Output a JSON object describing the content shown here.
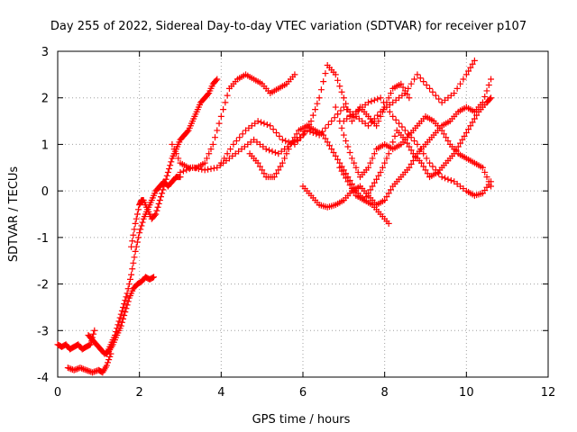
{
  "chart_data": {
    "type": "scatter",
    "title": "Day 255 of 2022, Sidereal Day-to-day VTEC variation (SDTVAR) for receiver p107",
    "xlabel": "GPS time / hours",
    "ylabel": "SDTVAR / TECUs",
    "xlim": [
      0,
      12
    ],
    "ylim": [
      -4,
      3
    ],
    "xticks": [
      "0",
      "2",
      "4",
      "6",
      "8",
      "10",
      "12"
    ],
    "yticks": [
      "-4",
      "-3",
      "-2",
      "-1",
      "0",
      "1",
      "2",
      "3"
    ],
    "grid": true,
    "marker": "plus",
    "color": "#ff0000",
    "series": [
      {
        "x": [
          0.0,
          0.1,
          0.2,
          0.3,
          0.4,
          0.5,
          0.6,
          0.7,
          0.8,
          0.9
        ],
        "y": [
          -3.3,
          -3.35,
          -3.3,
          -3.4,
          -3.35,
          -3.3,
          -3.4,
          -3.35,
          -3.3,
          -3.0
        ]
      },
      {
        "x": [
          0.25,
          0.4,
          0.55,
          0.7,
          0.85,
          1.0,
          1.1,
          1.2,
          1.3
        ],
        "y": [
          -3.8,
          -3.85,
          -3.8,
          -3.85,
          -3.9,
          -3.85,
          -3.9,
          -3.75,
          -3.5
        ]
      },
      {
        "x": [
          0.75,
          0.85,
          0.95,
          1.05,
          1.15,
          1.25,
          1.35,
          1.45,
          1.55,
          1.65,
          1.75,
          1.85,
          1.95,
          2.05,
          2.15,
          2.25,
          2.35
        ],
        "y": [
          -3.1,
          -3.2,
          -3.3,
          -3.4,
          -3.5,
          -3.45,
          -3.3,
          -3.1,
          -2.9,
          -2.6,
          -2.3,
          -2.1,
          -2.0,
          -1.95,
          -1.85,
          -1.9,
          -1.85
        ]
      },
      {
        "x": [
          1.2,
          1.3,
          1.4,
          1.5,
          1.6,
          1.7,
          1.8,
          1.9,
          2.0,
          2.1,
          2.2,
          2.3,
          2.4,
          2.5,
          2.6,
          2.7,
          2.8,
          2.9,
          3.0
        ],
        "y": [
          -3.5,
          -3.3,
          -3.1,
          -2.8,
          -2.5,
          -2.2,
          -1.8,
          -1.3,
          -0.9,
          -0.6,
          -0.4,
          -0.2,
          0.0,
          0.1,
          0.2,
          0.1,
          0.2,
          0.3,
          0.3
        ]
      },
      {
        "x": [
          1.8,
          1.9,
          2.0,
          2.05,
          2.1,
          2.2,
          2.3,
          2.4,
          2.5,
          2.6,
          2.7,
          2.8,
          2.9,
          3.0,
          3.1,
          3.2,
          3.3,
          3.4,
          3.5,
          3.6,
          3.7,
          3.8,
          3.9
        ],
        "y": [
          -1.2,
          -0.7,
          -0.3,
          -0.2,
          -0.2,
          -0.4,
          -0.6,
          -0.5,
          -0.2,
          0.1,
          0.4,
          0.7,
          0.9,
          1.1,
          1.2,
          1.3,
          1.5,
          1.7,
          1.9,
          2.0,
          2.1,
          2.3,
          2.4
        ]
      },
      {
        "x": [
          2.8,
          3.0,
          3.2,
          3.4,
          3.6,
          3.8,
          4.0,
          4.2,
          4.4,
          4.6,
          4.8,
          5.0,
          5.2,
          5.4,
          5.6,
          5.8
        ],
        "y": [
          1.0,
          0.6,
          0.5,
          0.5,
          0.6,
          1.0,
          1.6,
          2.2,
          2.4,
          2.5,
          2.4,
          2.3,
          2.1,
          2.2,
          2.3,
          2.5
        ]
      },
      {
        "x": [
          3.0,
          3.3,
          3.6,
          3.9,
          4.2,
          4.5,
          4.8,
          5.1,
          5.4,
          5.7,
          6.0,
          6.2,
          6.4,
          6.6,
          6.8,
          7.0,
          7.2,
          7.4,
          7.6,
          7.8,
          8.0,
          8.2,
          8.4,
          8.6
        ],
        "y": [
          0.4,
          0.5,
          0.45,
          0.5,
          0.7,
          0.9,
          1.1,
          0.9,
          0.8,
          1.0,
          1.2,
          1.5,
          2.0,
          2.7,
          2.5,
          2.0,
          1.5,
          1.8,
          1.6,
          1.4,
          1.8,
          2.2,
          2.3,
          2.0
        ]
      },
      {
        "x": [
          4.0,
          4.3,
          4.6,
          4.9,
          5.2,
          5.5,
          5.8,
          6.1,
          6.4,
          6.7,
          7.0,
          7.3,
          7.6,
          7.9,
          8.2,
          8.5,
          8.8,
          9.1,
          9.4,
          9.7,
          10.0,
          10.2
        ],
        "y": [
          0.6,
          1.0,
          1.3,
          1.5,
          1.4,
          1.1,
          1.0,
          1.3,
          1.2,
          1.5,
          1.8,
          1.6,
          1.4,
          1.7,
          1.9,
          2.1,
          2.5,
          2.2,
          1.9,
          2.1,
          2.5,
          2.8
        ]
      },
      {
        "x": [
          4.7,
          4.9,
          5.1,
          5.3,
          5.5,
          5.7,
          5.9,
          6.1,
          6.3,
          6.5,
          6.7,
          6.9,
          7.1,
          7.3,
          7.5,
          7.7,
          7.9,
          8.1
        ],
        "y": [
          0.8,
          0.6,
          0.3,
          0.3,
          0.6,
          1.0,
          1.3,
          1.4,
          1.3,
          1.2,
          0.9,
          0.6,
          0.3,
          0.0,
          -0.2,
          -0.3,
          -0.5,
          -0.7
        ]
      },
      {
        "x": [
          6.0,
          6.2,
          6.4,
          6.6,
          6.8,
          7.0,
          7.2,
          7.4,
          7.6,
          7.8,
          8.0,
          8.2,
          8.4,
          8.6,
          8.8,
          9.0,
          9.2,
          9.4,
          9.6,
          9.8,
          10.0,
          10.2,
          10.4,
          10.6
        ],
        "y": [
          0.1,
          -0.1,
          -0.3,
          -0.35,
          -0.3,
          -0.2,
          0.0,
          0.1,
          -0.1,
          -0.3,
          -0.2,
          0.1,
          0.3,
          0.5,
          0.8,
          1.0,
          1.2,
          1.4,
          1.5,
          1.7,
          1.8,
          1.7,
          1.9,
          2.4
        ]
      },
      {
        "x": [
          6.8,
          7.0,
          7.2,
          7.4,
          7.6,
          7.8,
          8.0,
          8.2,
          8.4,
          8.6,
          8.8,
          9.0,
          9.2,
          9.4,
          9.6,
          9.8,
          10.0,
          10.2,
          10.4,
          10.6
        ],
        "y": [
          1.8,
          1.2,
          0.7,
          0.3,
          0.5,
          0.9,
          1.0,
          0.9,
          1.0,
          1.2,
          1.4,
          1.6,
          1.5,
          1.3,
          1.0,
          0.8,
          0.7,
          0.6,
          0.5,
          0.1
        ]
      },
      {
        "x": [
          6.9,
          7.1,
          7.3,
          7.5,
          7.7,
          7.9,
          8.1,
          8.3,
          8.5,
          8.7,
          8.9,
          9.1,
          9.3,
          9.5,
          9.7,
          9.9,
          10.1,
          10.3,
          10.5,
          10.6
        ],
        "y": [
          0.5,
          0.2,
          -0.1,
          -0.2,
          0.1,
          0.4,
          0.8,
          1.3,
          1.1,
          0.8,
          0.6,
          0.3,
          0.4,
          0.6,
          0.8,
          1.1,
          1.4,
          1.7,
          1.9,
          2.0
        ]
      },
      {
        "x": [
          7.0,
          7.3,
          7.6,
          7.9,
          8.2,
          8.5,
          8.8,
          9.1,
          9.4,
          9.7,
          10.0,
          10.2,
          10.4,
          10.6
        ],
        "y": [
          1.5,
          1.7,
          1.9,
          2.0,
          1.6,
          1.3,
          1.0,
          0.6,
          0.3,
          0.2,
          0.0,
          -0.1,
          -0.05,
          0.2
        ]
      }
    ]
  }
}
